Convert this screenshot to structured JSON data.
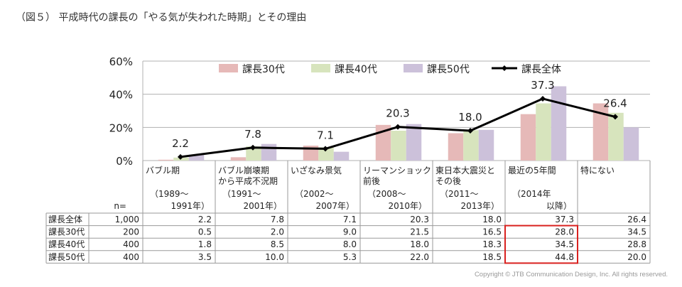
{
  "title": "（図５） 平成時代の課長の「やる気が失われた時期」とその理由",
  "copyright": "Copyright © JTB Communication Design, Inc. All rights reserved.",
  "n_label": "n=",
  "highlight_color": "#d9211f",
  "chart_data": {
    "type": "bar",
    "ylim": [
      0,
      60
    ],
    "yticks": [
      "0%",
      "20%",
      "40%",
      "60%"
    ],
    "legend_position": "top",
    "categories": [
      {
        "lines": [
          "バブル期",
          "",
          "（1989～",
          "1991年）"
        ]
      },
      {
        "lines": [
          "バブル崩壊期",
          "から平成不況期",
          "（1991～",
          "2001年）"
        ]
      },
      {
        "lines": [
          "いざなみ景気",
          "",
          "（2002～",
          "2007年）"
        ]
      },
      {
        "lines": [
          "リーマンショック",
          "前後",
          "（2008～",
          "2010年）"
        ]
      },
      {
        "lines": [
          "東日本大震災と",
          "その後",
          "（2011～",
          "2013年）"
        ]
      },
      {
        "lines": [
          "最近の5年間",
          "",
          "（2014年",
          "以降）"
        ]
      },
      {
        "lines": [
          "特にない",
          "",
          "",
          ""
        ]
      }
    ],
    "series": [
      {
        "name": "課長30代",
        "kind": "bar",
        "color": "#e6b9b8",
        "n": "200",
        "values": [
          0.5,
          2.0,
          9.0,
          21.5,
          16.5,
          28.0,
          34.5
        ],
        "table_values": [
          "0.5",
          "2.0",
          "9.0",
          "21.5",
          "16.5",
          "28.0",
          "34.5"
        ]
      },
      {
        "name": "課長40代",
        "kind": "bar",
        "color": "#d7e4bd",
        "n": "400",
        "values": [
          1.8,
          8.5,
          8.0,
          18.0,
          18.3,
          34.5,
          28.8
        ],
        "table_values": [
          "1.8",
          "8.5",
          "8.0",
          "18.0",
          "18.3",
          "34.5",
          "28.8"
        ]
      },
      {
        "name": "課長50代",
        "kind": "bar",
        "color": "#ccc1da",
        "n": "400",
        "values": [
          3.5,
          10.0,
          5.3,
          22.0,
          18.5,
          44.8,
          20.0
        ],
        "table_values": [
          "3.5",
          "10.0",
          "5.3",
          "22.0",
          "18.5",
          "44.8",
          "20.0"
        ]
      },
      {
        "name": "課長全体",
        "kind": "line",
        "color": "#000000",
        "n": "1,000",
        "values": [
          2.2,
          7.8,
          7.1,
          20.3,
          18.0,
          37.3,
          26.4
        ],
        "table_values": [
          "2.2",
          "7.8",
          "7.1",
          "20.3",
          "18.0",
          "37.3",
          "26.4"
        ]
      }
    ],
    "table_row_order": [
      3,
      0,
      1,
      2
    ]
  }
}
